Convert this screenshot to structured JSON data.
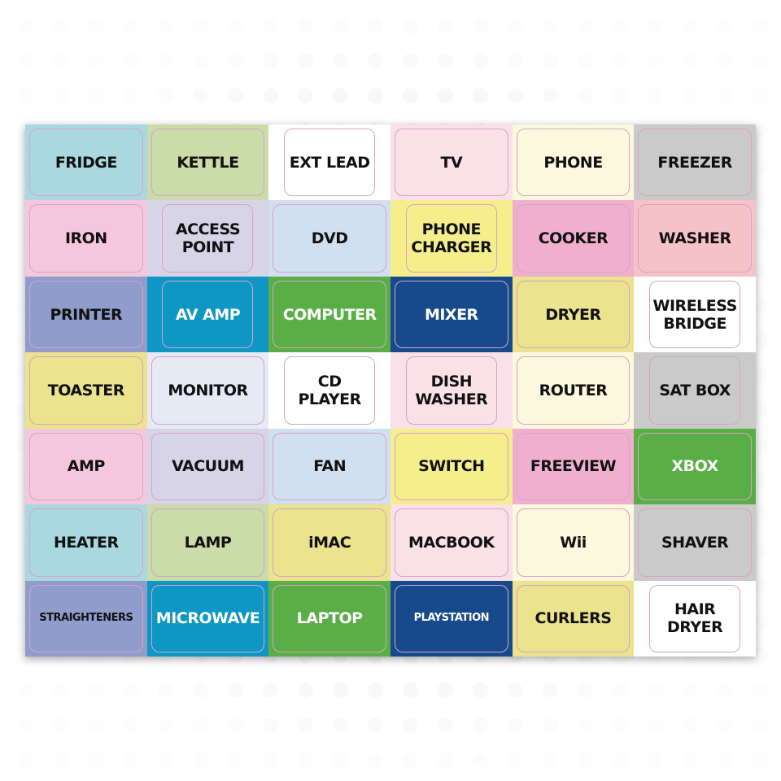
{
  "sheet": {
    "labels": [
      {
        "text": "FRIDGE",
        "color": "#a9d8e1"
      },
      {
        "text": "KETTLE",
        "color": "#cadca9"
      },
      {
        "text": "EXT LEAD",
        "color": "#ffffff"
      },
      {
        "text": "TV",
        "color": "#f9e1e7"
      },
      {
        "text": "PHONE",
        "color": "#fbf8dd"
      },
      {
        "text": "FREEZER",
        "color": "#cacaca"
      },
      {
        "text": "IRON",
        "color": "#f5c7dc"
      },
      {
        "text": "ACCESS POINT",
        "color": "#d7d4e8"
      },
      {
        "text": "DVD",
        "color": "#d1e0f0"
      },
      {
        "text": "PHONE CHARGER",
        "color": "#f6ee8d"
      },
      {
        "text": "COOKER",
        "color": "#f0afcf"
      },
      {
        "text": "WASHER",
        "color": "#f4c2c7"
      },
      {
        "text": "PRINTER",
        "color": "#8f9dcc"
      },
      {
        "text": "AV AMP",
        "color": "#0e97c4",
        "light": true
      },
      {
        "text": "COMPUTER",
        "color": "#5aae46",
        "light": true
      },
      {
        "text": "MIXER",
        "color": "#164a8c",
        "light": true
      },
      {
        "text": "DRYER",
        "color": "#ebe38d"
      },
      {
        "text": "WIRELESS BRIDGE",
        "color": "#ffffff"
      },
      {
        "text": "TOASTER",
        "color": "#ebe38d"
      },
      {
        "text": "MONITOR",
        "color": "#e5eaf5"
      },
      {
        "text": "CD PLAYER",
        "color": "#ffffff"
      },
      {
        "text": "DISH WASHER",
        "color": "#f9e1e7"
      },
      {
        "text": "ROUTER",
        "color": "#fbf8dd"
      },
      {
        "text": "SAT BOX",
        "color": "#cacaca"
      },
      {
        "text": "AMP",
        "color": "#f5c7dc"
      },
      {
        "text": "VACUUM",
        "color": "#d7d4e8"
      },
      {
        "text": "FAN",
        "color": "#d1e0f0"
      },
      {
        "text": "SWITCH",
        "color": "#f6ee8d"
      },
      {
        "text": "FREEVIEW",
        "color": "#f0afcf"
      },
      {
        "text": "XBOX",
        "color": "#5aae46",
        "light": true
      },
      {
        "text": "HEATER",
        "color": "#a9d8e1"
      },
      {
        "text": "LAMP",
        "color": "#cadca9"
      },
      {
        "text": "iMAC",
        "color": "#ebe38d"
      },
      {
        "text": "MACBOOK",
        "color": "#f9e1e7"
      },
      {
        "text": "Wii",
        "color": "#fbf8dd"
      },
      {
        "text": "SHAVER",
        "color": "#cacaca"
      },
      {
        "text": "STRAIGHTENERS",
        "color": "#8f9dcc",
        "small": true
      },
      {
        "text": "MICROWAVE",
        "color": "#0e97c4",
        "light": true
      },
      {
        "text": "LAPTOP",
        "color": "#5aae46",
        "light": true
      },
      {
        "text": "PLAYSTATION",
        "color": "#164a8c",
        "light": true,
        "small": true
      },
      {
        "text": "CURLERS",
        "color": "#ebe38d"
      },
      {
        "text": "HAIR DRYER",
        "color": "#ffffff"
      }
    ]
  }
}
